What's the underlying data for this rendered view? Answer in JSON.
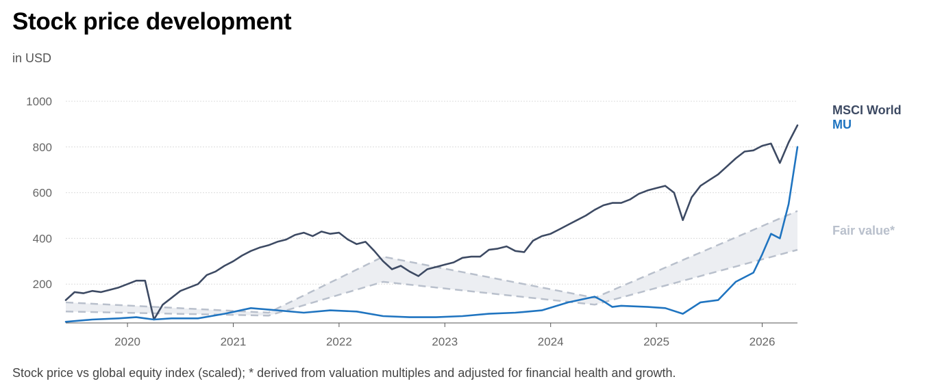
{
  "chart_data": {
    "type": "line",
    "title": "Stock price development",
    "subtitle": "in USD",
    "caption": "Stock price vs global equity index (scaled); * derived from valuation multiples and adjusted for financial health and growth.",
    "xlim": [
      "2019-06",
      "2026-05"
    ],
    "ylim": [
      30,
      1000
    ],
    "yticks": [
      200,
      400,
      600,
      800,
      1000
    ],
    "xticks": [
      "2020",
      "2021",
      "2022",
      "2023",
      "2024",
      "2025",
      "2026"
    ],
    "grid": true,
    "legend_placement": "right",
    "series": [
      {
        "name": "MSCI World",
        "color": "#3d4a63",
        "points": [
          [
            "2019-06",
            130
          ],
          [
            "2019-07",
            165
          ],
          [
            "2019-08",
            160
          ],
          [
            "2019-09",
            170
          ],
          [
            "2019-10",
            165
          ],
          [
            "2019-11",
            175
          ],
          [
            "2019-12",
            185
          ],
          [
            "2020-01",
            200
          ],
          [
            "2020-02",
            215
          ],
          [
            "2020-03",
            215
          ],
          [
            "2020-04",
            45
          ],
          [
            "2020-05",
            110
          ],
          [
            "2020-06",
            140
          ],
          [
            "2020-07",
            170
          ],
          [
            "2020-08",
            185
          ],
          [
            "2020-09",
            200
          ],
          [
            "2020-10",
            240
          ],
          [
            "2020-11",
            255
          ],
          [
            "2020-12",
            280
          ],
          [
            "2021-01",
            300
          ],
          [
            "2021-02",
            325
          ],
          [
            "2021-03",
            345
          ],
          [
            "2021-04",
            360
          ],
          [
            "2021-05",
            370
          ],
          [
            "2021-06",
            385
          ],
          [
            "2021-07",
            395
          ],
          [
            "2021-08",
            415
          ],
          [
            "2021-09",
            425
          ],
          [
            "2021-10",
            410
          ],
          [
            "2021-11",
            430
          ],
          [
            "2021-12",
            420
          ],
          [
            "2022-01",
            425
          ],
          [
            "2022-02",
            395
          ],
          [
            "2022-03",
            375
          ],
          [
            "2022-04",
            385
          ],
          [
            "2022-05",
            345
          ],
          [
            "2022-06",
            300
          ],
          [
            "2022-07",
            265
          ],
          [
            "2022-08",
            280
          ],
          [
            "2022-09",
            255
          ],
          [
            "2022-10",
            235
          ],
          [
            "2022-11",
            265
          ],
          [
            "2022-12",
            275
          ],
          [
            "2023-01",
            285
          ],
          [
            "2023-02",
            295
          ],
          [
            "2023-03",
            315
          ],
          [
            "2023-04",
            320
          ],
          [
            "2023-05",
            320
          ],
          [
            "2023-06",
            350
          ],
          [
            "2023-07",
            355
          ],
          [
            "2023-08",
            365
          ],
          [
            "2023-09",
            345
          ],
          [
            "2023-10",
            340
          ],
          [
            "2023-11",
            390
          ],
          [
            "2023-12",
            410
          ],
          [
            "2024-01",
            420
          ],
          [
            "2024-02",
            440
          ],
          [
            "2024-03",
            460
          ],
          [
            "2024-04",
            480
          ],
          [
            "2024-05",
            500
          ],
          [
            "2024-06",
            525
          ],
          [
            "2024-07",
            545
          ],
          [
            "2024-08",
            555
          ],
          [
            "2024-09",
            555
          ],
          [
            "2024-10",
            570
          ],
          [
            "2024-11",
            595
          ],
          [
            "2024-12",
            610
          ],
          [
            "2025-01",
            620
          ],
          [
            "2025-02",
            630
          ],
          [
            "2025-03",
            600
          ],
          [
            "2025-04",
            480
          ],
          [
            "2025-05",
            580
          ],
          [
            "2025-06",
            630
          ],
          [
            "2025-07",
            655
          ],
          [
            "2025-08",
            680
          ],
          [
            "2025-09",
            715
          ],
          [
            "2025-10",
            750
          ],
          [
            "2025-11",
            780
          ],
          [
            "2025-12",
            785
          ],
          [
            "2026-01",
            805
          ],
          [
            "2026-02",
            815
          ],
          [
            "2026-03",
            730
          ],
          [
            "2026-04",
            820
          ],
          [
            "2026-05",
            895
          ]
        ]
      },
      {
        "name": "MU",
        "color": "#1f74c0",
        "points": [
          [
            "2019-06",
            35
          ],
          [
            "2019-09",
            45
          ],
          [
            "2019-12",
            50
          ],
          [
            "2020-02",
            55
          ],
          [
            "2020-03",
            50
          ],
          [
            "2020-04",
            45
          ],
          [
            "2020-06",
            50
          ],
          [
            "2020-09",
            50
          ],
          [
            "2020-12",
            70
          ],
          [
            "2021-03",
            95
          ],
          [
            "2021-06",
            85
          ],
          [
            "2021-09",
            75
          ],
          [
            "2021-12",
            85
          ],
          [
            "2022-03",
            80
          ],
          [
            "2022-06",
            60
          ],
          [
            "2022-09",
            55
          ],
          [
            "2022-12",
            55
          ],
          [
            "2023-03",
            60
          ],
          [
            "2023-06",
            70
          ],
          [
            "2023-09",
            75
          ],
          [
            "2023-12",
            85
          ],
          [
            "2024-03",
            120
          ],
          [
            "2024-06",
            145
          ],
          [
            "2024-07",
            125
          ],
          [
            "2024-08",
            100
          ],
          [
            "2024-09",
            105
          ],
          [
            "2024-12",
            100
          ],
          [
            "2025-02",
            95
          ],
          [
            "2025-04",
            70
          ],
          [
            "2025-06",
            120
          ],
          [
            "2025-08",
            130
          ],
          [
            "2025-10",
            210
          ],
          [
            "2025-12",
            250
          ],
          [
            "2026-01",
            330
          ],
          [
            "2026-02",
            420
          ],
          [
            "2026-03",
            400
          ],
          [
            "2026-04",
            550
          ],
          [
            "2026-05",
            800
          ]
        ]
      }
    ],
    "fair_value_band": {
      "name": "Fair value*",
      "color": "#b9c0cc",
      "upper": [
        [
          "2019-06",
          120
        ],
        [
          "2021-05",
          75
        ],
        [
          "2022-06",
          320
        ],
        [
          "2024-06",
          140
        ],
        [
          "2026-05",
          520
        ]
      ],
      "lower": [
        [
          "2019-06",
          80
        ],
        [
          "2021-05",
          62
        ],
        [
          "2022-06",
          210
        ],
        [
          "2024-06",
          110
        ],
        [
          "2026-05",
          350
        ]
      ]
    }
  }
}
